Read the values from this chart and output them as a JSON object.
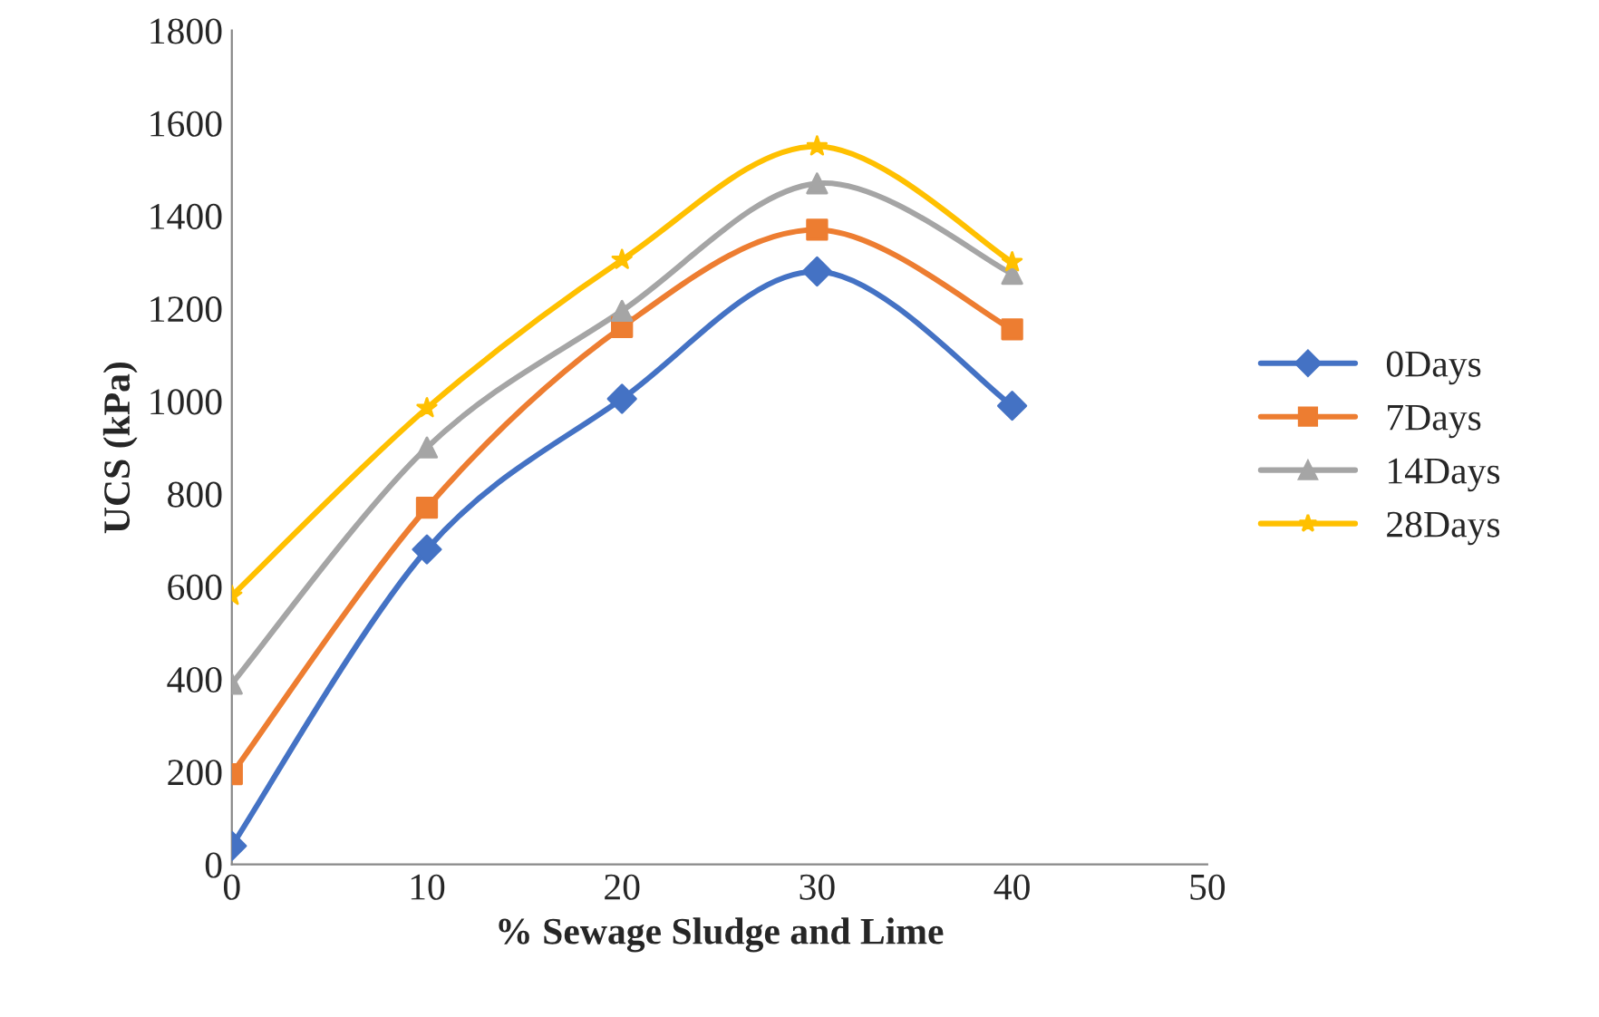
{
  "chart_data": {
    "type": "line",
    "xlabel": "% Sewage Sludge and Lime",
    "ylabel": "UCS (kPa)",
    "x": [
      0,
      10,
      20,
      30,
      40
    ],
    "series": [
      {
        "name": "0Days",
        "color": "#4472c4",
        "marker": "diamond",
        "values": [
          40,
          680,
          1005,
          1280,
          990
        ]
      },
      {
        "name": "7Days",
        "color": "#ed7d31",
        "marker": "square",
        "values": [
          195,
          770,
          1160,
          1370,
          1155
        ]
      },
      {
        "name": "14Days",
        "color": "#a5a5a5",
        "marker": "triangle",
        "values": [
          390,
          900,
          1195,
          1470,
          1275
        ]
      },
      {
        "name": "28Days",
        "color": "#ffc000",
        "marker": "star",
        "values": [
          580,
          985,
          1305,
          1550,
          1300
        ]
      }
    ],
    "xlim": [
      0,
      50
    ],
    "xticks": [
      0,
      10,
      20,
      30,
      40,
      50
    ],
    "ylim": [
      0,
      1800
    ],
    "yticks": [
      0,
      200,
      400,
      600,
      800,
      1000,
      1200,
      1400,
      1600,
      1800
    ],
    "grid": false,
    "legend": "right",
    "line_style": "solid"
  }
}
